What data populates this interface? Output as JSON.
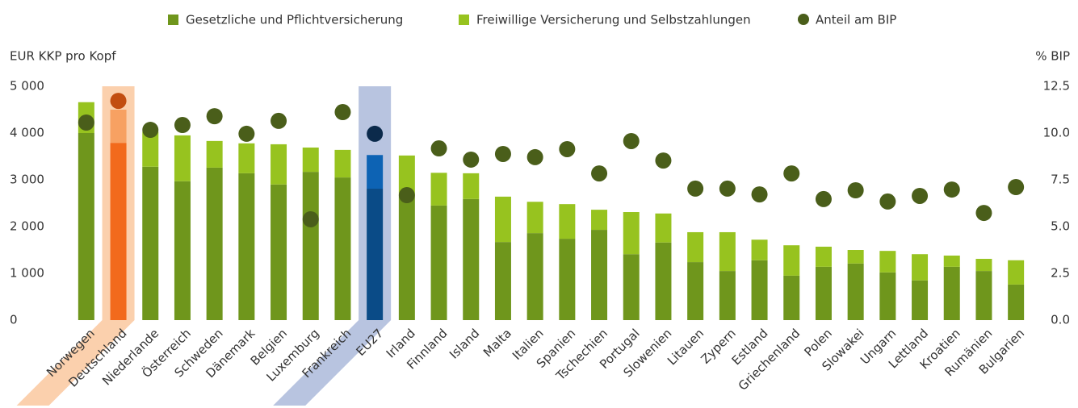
{
  "chart_data": {
    "type": "stacked_bar_dot",
    "ylabel": "EUR KKP pro Kopf",
    "y2label": "% BIP",
    "categories": [
      "Norwegen",
      "Deutschland",
      "Niederlande",
      "Österreich",
      "Schweden",
      "Dänemark",
      "Belgien",
      "Luxemburg",
      "Frankreich",
      "EU27",
      "Irland",
      "Finnland",
      "Island",
      "Malta",
      "Italien",
      "Spanien",
      "Tschechien",
      "Portugal",
      "Slowenien",
      "Litauen",
      "Zypern",
      "Estland",
      "Griechenland",
      "Polen",
      "Slowakei",
      "Ungarn",
      "Lettland",
      "Kroatien",
      "Rumänien",
      "Bulgarien"
    ],
    "series": [
      {
        "name": "Gesetzliche und Pflichtversicherung",
        "color": "#6f961c",
        "values": [
          4000,
          3790,
          3280,
          2970,
          3260,
          3140,
          2900,
          3170,
          3050,
          2810,
          2650,
          2450,
          2590,
          1670,
          1860,
          1740,
          1930,
          1410,
          1660,
          1240,
          1050,
          1280,
          950,
          1140,
          1210,
          1020,
          850,
          1140,
          1050,
          760
        ]
      },
      {
        "name": "Freiwillige Versicherung und Selbstzahlungen",
        "color": "#97c31f",
        "values": [
          660,
          710,
          750,
          980,
          570,
          640,
          860,
          520,
          590,
          720,
          870,
          700,
          550,
          970,
          670,
          740,
          430,
          900,
          620,
          640,
          830,
          440,
          650,
          430,
          290,
          460,
          560,
          240,
          260,
          520
        ]
      },
      {
        "name": "Anteil am BIP",
        "color": "#4a5e1a",
        "axis": "y2",
        "values": [
          10.56,
          11.72,
          10.17,
          10.43,
          10.9,
          9.96,
          10.65,
          5.39,
          11.12,
          9.96,
          6.68,
          9.18,
          8.58,
          8.88,
          8.71,
          9.14,
          7.84,
          9.57,
          8.53,
          7.03,
          7.03,
          6.72,
          7.84,
          6.47,
          6.94,
          6.34,
          6.64,
          6.98,
          5.73,
          7.11
        ]
      }
    ],
    "highlights": [
      {
        "category": "Deutschland",
        "band_color": "#fbd0ad",
        "colors": [
          "#f26a1c",
          "#f7a162",
          "#c24d10"
        ]
      },
      {
        "category": "EU27",
        "band_color": "#b8c4e0",
        "colors": [
          "#0a4b87",
          "#0d63b4",
          "#0b2a4b"
        ]
      }
    ],
    "ylim": [
      0,
      5000
    ],
    "yticks": [
      {
        "value": 0,
        "label": "0"
      },
      {
        "value": 1000,
        "label": "1 000"
      },
      {
        "value": 2000,
        "label": "2 000"
      },
      {
        "value": 3000,
        "label": "3 000"
      },
      {
        "value": 4000,
        "label": "4 000"
      },
      {
        "value": 5000,
        "label": "5 000"
      }
    ],
    "y2lim": [
      0,
      12.5
    ],
    "y2ticks": [
      {
        "value": 0,
        "label": "0.0"
      },
      {
        "value": 2.5,
        "label": "2.5"
      },
      {
        "value": 5,
        "label": "5.0"
      },
      {
        "value": 7.5,
        "label": "7.5"
      },
      {
        "value": 10,
        "label": "10.0"
      },
      12.5
    ],
    "grid": false
  }
}
